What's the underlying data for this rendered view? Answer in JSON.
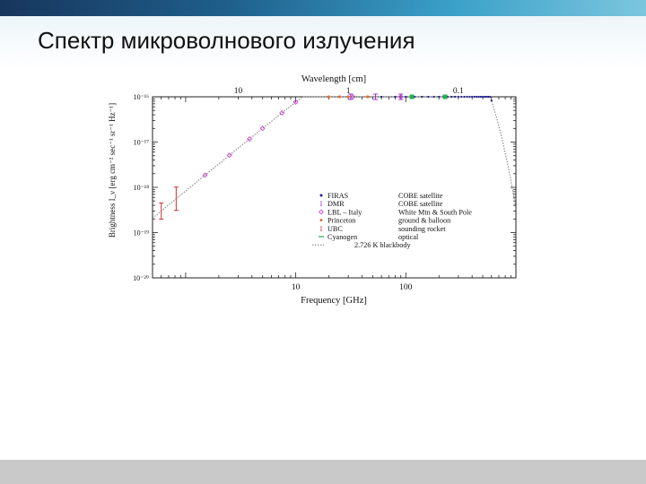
{
  "slide": {
    "title": "Спектр микроволнового излучения",
    "colors": {
      "topbar_dark": "#17365c",
      "topbar_light": "#7cc6de",
      "footer": "#c9c9c9"
    }
  },
  "chart_data": {
    "type": "scatter",
    "xlabel": "Frequency [GHz]",
    "ylabel": "Brightness  I_ν [erg cm⁻² sec⁻¹ sr⁻¹ Hz⁻¹]",
    "top_axis_label": "Wavelength [cm]",
    "x_scale": "log",
    "y_scale": "log",
    "xlim": [
      0.5,
      1000
    ],
    "ylim": [
      1e-20,
      1e-16
    ],
    "x_ticks": [
      {
        "value": 10,
        "label": "10"
      },
      {
        "value": 100,
        "label": "100"
      }
    ],
    "top_ticks": [
      {
        "value": 10,
        "label": "10"
      },
      {
        "value": 1,
        "label": "1"
      },
      {
        "value": 0.1,
        "label": "0.1"
      }
    ],
    "y_ticks": [
      {
        "value": 1e-16,
        "label": "10⁻¹⁶"
      },
      {
        "value": 1e-17,
        "label": "10⁻¹⁷"
      },
      {
        "value": 1e-18,
        "label": "10⁻¹⁸"
      },
      {
        "value": 1e-19,
        "label": "10⁻¹⁹"
      },
      {
        "value": 1e-20,
        "label": "10⁻²⁰"
      }
    ],
    "blackbody": {
      "temperature_K": 2.726,
      "color": "#7a7a7a"
    },
    "legend": [
      {
        "name": "FIRAS",
        "desc": "COBE satellite",
        "color": "#1f1f8f",
        "marker": "dot"
      },
      {
        "name": "DMR",
        "desc": "COBE satellite",
        "color": "#9933cc",
        "marker": "errorbar"
      },
      {
        "name": "LBL – Italy",
        "desc": "White Mtn & South Pole",
        "color": "#cc44cc",
        "marker": "diamond"
      },
      {
        "name": "Princeton",
        "desc": "ground & balloon",
        "color": "#e07030",
        "marker": "dot"
      },
      {
        "name": "UBC",
        "desc": "sounding rocket",
        "color": "#d03030",
        "marker": "errorbar"
      },
      {
        "name": "Cyanogen",
        "desc": "optical",
        "color": "#22b04a",
        "marker": "dash"
      },
      {
        "name": "",
        "desc": "2.726 K blackbody",
        "color": "#7a7a7a",
        "marker": "dotted-line"
      }
    ],
    "series": [
      {
        "name": "FIRAS",
        "color": "#1f1f8f",
        "x": [
          60,
          80,
          100,
          120,
          140,
          160,
          180,
          200,
          220,
          240,
          260,
          280,
          300,
          320,
          340,
          360,
          380,
          400,
          420,
          440,
          460,
          480,
          500,
          520,
          540,
          560,
          580,
          600
        ]
      },
      {
        "name": "DMR",
        "color": "#9933cc",
        "x": [
          31.5,
          53,
          90
        ]
      },
      {
        "name": "LBL – Italy",
        "color": "#cc44cc",
        "x": [
          1.5,
          2.5,
          3.8,
          5,
          7.5,
          10,
          33,
          90
        ]
      },
      {
        "name": "Princeton",
        "color": "#e07030",
        "x": [
          20,
          25,
          30,
          45
        ]
      },
      {
        "name": "UBC",
        "color": "#d03030",
        "x": [
          0.6,
          0.82
        ]
      },
      {
        "name": "Cyanogen",
        "color": "#22b04a",
        "x": [
          113.6,
          227.3
        ]
      }
    ]
  }
}
